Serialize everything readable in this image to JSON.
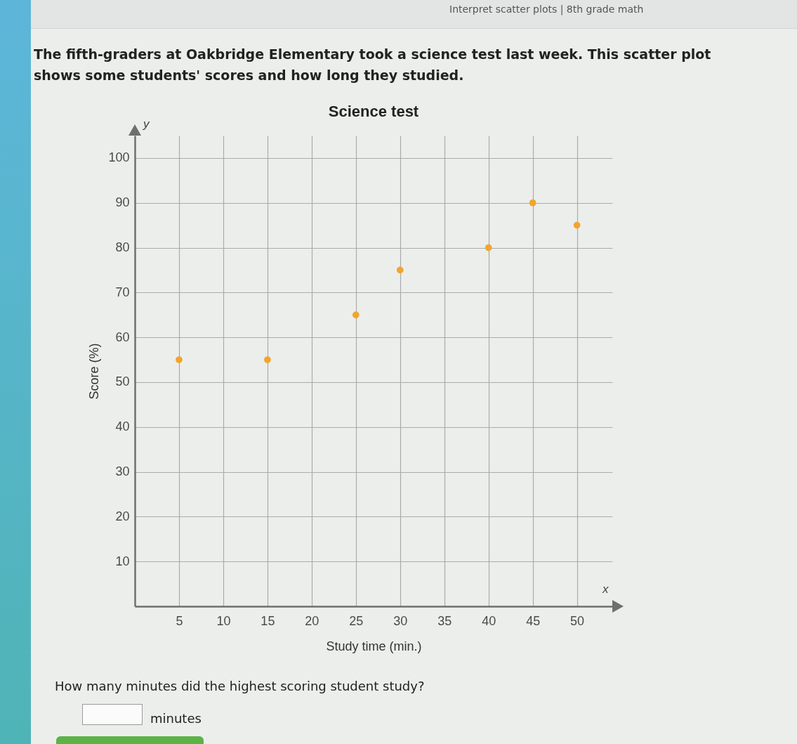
{
  "chart_data": {
    "type": "scatter",
    "title": "Science test",
    "xlabel": "Study time (min.)",
    "ylabel": "Score (%)",
    "x": [
      5,
      15,
      25,
      30,
      40,
      45,
      50
    ],
    "values": [
      55,
      55,
      65,
      75,
      80,
      90,
      85
    ],
    "color": "#f2a52c",
    "marker": "circle",
    "xlim": [
      0,
      54
    ],
    "ylim": [
      0,
      105
    ],
    "xticks": [
      5,
      10,
      15,
      20,
      25,
      30,
      35,
      40,
      45,
      50
    ],
    "yticks": [
      10,
      20,
      30,
      40,
      50,
      60,
      70,
      80,
      90,
      100
    ],
    "grid": true,
    "annotations": [
      "Interpret scatter plots | 8th grade math",
      "The fifth-graders at Oakbridge Elementary took a science test last week. This scatter plot shows some students' scores and how long they studied.",
      "y",
      "x",
      "How many minutes did the highest scoring student study?",
      "minutes"
    ]
  }
}
